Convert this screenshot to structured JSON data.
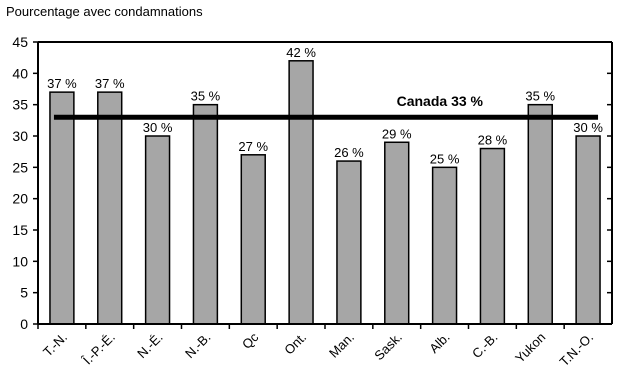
{
  "chart_data": {
    "type": "bar",
    "ylabel": "Pourcentage avec condamnations",
    "categories": [
      "T.-N.",
      "Î.-P.-É.",
      "N.-É.",
      "N.-B.",
      "Qc",
      "Ont.",
      "Man.",
      "Sask.",
      "Alb.",
      "C.-B.",
      "Yukon",
      "T.N.-O."
    ],
    "values": [
      37,
      37,
      30,
      35,
      27,
      42,
      26,
      29,
      25,
      28,
      35,
      30
    ],
    "data_labels": [
      "37 %",
      "37 %",
      "30 %",
      "35 %",
      "27 %",
      "42 %",
      "26 %",
      "29 %",
      "25 %",
      "28 %",
      "35 %",
      "30 %"
    ],
    "ylim": [
      0,
      45
    ],
    "yticks": [
      0,
      5,
      10,
      15,
      20,
      25,
      30,
      35,
      40,
      45
    ],
    "reference_line": {
      "value": 33,
      "label": "Canada 33 %"
    },
    "grid": false,
    "colors": {
      "bar": "#a6a6a6",
      "bar_stroke": "#000000",
      "line": "#000000"
    }
  }
}
